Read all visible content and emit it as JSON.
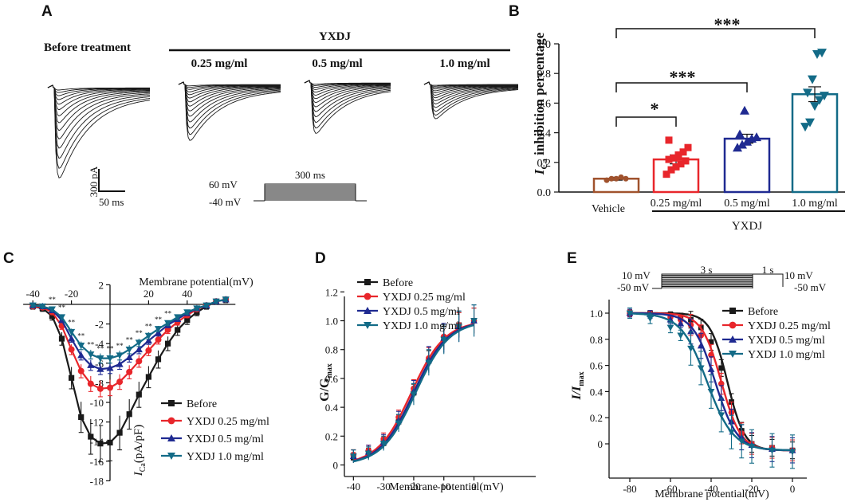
{
  "panel_labels": [
    "A",
    "B",
    "C",
    "D",
    "E"
  ],
  "colors": {
    "black": "#1a1a1a",
    "red": "#e8262b",
    "blue": "#1f2a91",
    "teal": "#136b87",
    "brown": "#a0522d"
  },
  "panelA": {
    "before_label": "Before treatment",
    "yxdj_label": "YXDJ",
    "doses": [
      "0.25 mg/ml",
      "0.5 mg/ml",
      "1.0 mg/ml"
    ],
    "scale_current": "300 pA",
    "scale_time": "50 ms",
    "protocol_top": "60 mV",
    "protocol_bottom": "-40 mV",
    "protocol_duration": "300 ms"
  },
  "panelB": {
    "ylabel_main": "I",
    "ylabel_sub": "Ca",
    "ylabel_rest": " inhibition percentage",
    "group_label": "YXDJ",
    "sig_labels": [
      "*",
      "***",
      "***"
    ]
  },
  "panelC": {
    "xlabel": "Membrane potential(mV)",
    "ylabel_main": "I",
    "ylabel_sub": "Ca",
    "ylabel_rest": "(pA/pF)",
    "sig_marks": [
      "**",
      "**",
      "**",
      "**",
      "**",
      "**",
      "**",
      "**",
      "**",
      "**",
      "**",
      "**",
      "**"
    ]
  },
  "panelD": {
    "xlabel": "Membrane potential(mV)",
    "ylabel": "G/G",
    "ylabel_sub": "max"
  },
  "panelE": {
    "xlabel": "Membrane potential(mV)",
    "ylabel": "I/I",
    "ylabel_sub": "max",
    "protocol_top_left": "10 mV",
    "protocol_bottom_left": "-50 mV",
    "protocol_duration_1": "3 s",
    "protocol_duration_2": "1 s",
    "protocol_top_right": "10 mV",
    "protocol_bottom_right": "-50 mV"
  },
  "chart_data": [
    {
      "panel": "B",
      "type": "bar",
      "categories": [
        "Vehicle",
        "0.25 mg/ml",
        "0.5 mg/ml",
        "1.0 mg/ml"
      ],
      "values": [
        0.09,
        0.22,
        0.36,
        0.66
      ],
      "errors": [
        0.01,
        0.03,
        0.03,
        0.05
      ],
      "points": [
        [
          0.08,
          0.09,
          0.09,
          0.1,
          0.09
        ],
        [
          0.12,
          0.15,
          0.17,
          0.19,
          0.21,
          0.22,
          0.23,
          0.25,
          0.27,
          0.3,
          0.35
        ],
        [
          0.3,
          0.32,
          0.34,
          0.36,
          0.37,
          0.39,
          0.55
        ],
        [
          0.44,
          0.47,
          0.58,
          0.62,
          0.65,
          0.67,
          0.76,
          0.93,
          0.94
        ]
      ],
      "series_colors": [
        "#a0522d",
        "#e8262b",
        "#1f2a91",
        "#136b87"
      ],
      "ylim": [
        0,
        1.0
      ],
      "yticks": [
        0.0,
        0.2,
        0.4,
        0.6,
        0.8,
        1.0
      ]
    },
    {
      "panel": "C",
      "type": "line",
      "x": [
        -40,
        -35,
        -30,
        -25,
        -20,
        -15,
        -10,
        -5,
        0,
        5,
        10,
        15,
        20,
        25,
        30,
        35,
        40,
        45,
        50,
        55,
        60
      ],
      "series": [
        {
          "name": "Before",
          "values": [
            -0.2,
            -0.4,
            -1.2,
            -3.5,
            -7.5,
            -11.5,
            -13.5,
            -14.2,
            -14.1,
            -13.1,
            -11.2,
            -9.2,
            -7.4,
            -5.6,
            -4.0,
            -2.6,
            -1.6,
            -0.8,
            -0.2,
            0.3,
            0.5
          ],
          "error": 0.9
        },
        {
          "name": "YXDJ 0.25 mg/ml",
          "values": [
            -0.2,
            -0.3,
            -0.8,
            -2.2,
            -4.6,
            -6.8,
            -8.1,
            -8.6,
            -8.5,
            -7.9,
            -6.9,
            -5.8,
            -4.7,
            -3.6,
            -2.6,
            -1.8,
            -1.1,
            -0.5,
            -0.1,
            0.3,
            0.5
          ],
          "error": 0.6
        },
        {
          "name": "YXDJ 0.5 mg/ml",
          "values": [
            -0.1,
            -0.2,
            -0.6,
            -1.6,
            -3.5,
            -5.2,
            -6.2,
            -6.6,
            -6.5,
            -6.1,
            -5.4,
            -4.6,
            -3.7,
            -2.9,
            -2.1,
            -1.5,
            -0.9,
            -0.4,
            -0.1,
            0.3,
            0.5
          ],
          "error": 0.5
        },
        {
          "name": "YXDJ 1.0 mg/ml",
          "values": [
            -0.1,
            -0.2,
            -0.5,
            -1.3,
            -2.8,
            -4.2,
            -5.1,
            -5.5,
            -5.5,
            -5.2,
            -4.6,
            -3.9,
            -3.2,
            -2.5,
            -1.9,
            -1.3,
            -0.8,
            -0.4,
            -0.1,
            0.3,
            0.5
          ],
          "error": 0.5
        }
      ],
      "xticks": [
        -40,
        -20,
        20,
        40
      ],
      "ylim": [
        -18,
        2
      ],
      "yticks": [
        2,
        -2,
        -4,
        -6,
        -8,
        -10,
        -12,
        -14,
        -16,
        -18
      ],
      "legend": "lower-right"
    },
    {
      "panel": "D",
      "type": "line",
      "x": [
        -40,
        -35,
        -30,
        -25,
        -20,
        -15,
        -10,
        -5,
        0
      ],
      "series": [
        {
          "name": "Before",
          "values": [
            0.05,
            0.08,
            0.15,
            0.3,
            0.5,
            0.72,
            0.88,
            0.97,
            1.0
          ],
          "error": 0.08
        },
        {
          "name": "YXDJ 0.25 mg/ml",
          "values": [
            0.07,
            0.1,
            0.18,
            0.33,
            0.53,
            0.74,
            0.89,
            0.97,
            1.0
          ],
          "error": 0.08
        },
        {
          "name": "YXDJ 0.5 mg/ml",
          "values": [
            0.06,
            0.09,
            0.16,
            0.31,
            0.51,
            0.73,
            0.88,
            0.96,
            1.0
          ],
          "error": 0.1
        },
        {
          "name": "YXDJ 1.0 mg/ml",
          "values": [
            0.06,
            0.08,
            0.15,
            0.29,
            0.49,
            0.71,
            0.87,
            0.96,
            1.0
          ],
          "error": 0.1
        }
      ],
      "xticks": [
        -40,
        -30,
        -20,
        -10,
        0
      ],
      "ylim": [
        0,
        1.2
      ],
      "yticks": [
        0,
        0.2,
        0.4,
        0.6,
        0.8,
        1.0,
        1.2
      ],
      "legend": "top-left"
    },
    {
      "panel": "E",
      "type": "line",
      "x": [
        -80,
        -70,
        -60,
        -55,
        -50,
        -45,
        -40,
        -35,
        -30,
        -25,
        -20,
        -10,
        0
      ],
      "series": [
        {
          "name": "Before",
          "values": [
            1.0,
            1.0,
            0.99,
            0.98,
            0.95,
            0.89,
            0.78,
            0.58,
            0.32,
            0.1,
            0.0,
            -0.03,
            -0.05
          ],
          "error": 0.04
        },
        {
          "name": "YXDJ 0.25 mg/ml",
          "values": [
            1.0,
            0.99,
            0.97,
            0.95,
            0.91,
            0.83,
            0.68,
            0.46,
            0.24,
            0.08,
            0.0,
            -0.03,
            -0.05
          ],
          "error": 0.05
        },
        {
          "name": "YXDJ 0.5 mg/ml",
          "values": [
            1.0,
            0.99,
            0.95,
            0.92,
            0.86,
            0.75,
            0.57,
            0.35,
            0.17,
            0.05,
            -0.01,
            -0.04,
            -0.05
          ],
          "error": 0.06
        },
        {
          "name": "YXDJ 1.0 mg/ml",
          "values": [
            1.0,
            0.96,
            0.89,
            0.83,
            0.73,
            0.58,
            0.4,
            0.22,
            0.09,
            0.02,
            -0.02,
            -0.05,
            -0.06
          ],
          "error": 0.08
        }
      ],
      "xticks": [
        -80,
        -60,
        -40,
        -20,
        0
      ],
      "ylim": [
        -0.15,
        1.05
      ],
      "yticks": [
        0,
        0.2,
        0.4,
        0.6,
        0.8,
        1.0
      ],
      "legend": "top-right"
    }
  ]
}
